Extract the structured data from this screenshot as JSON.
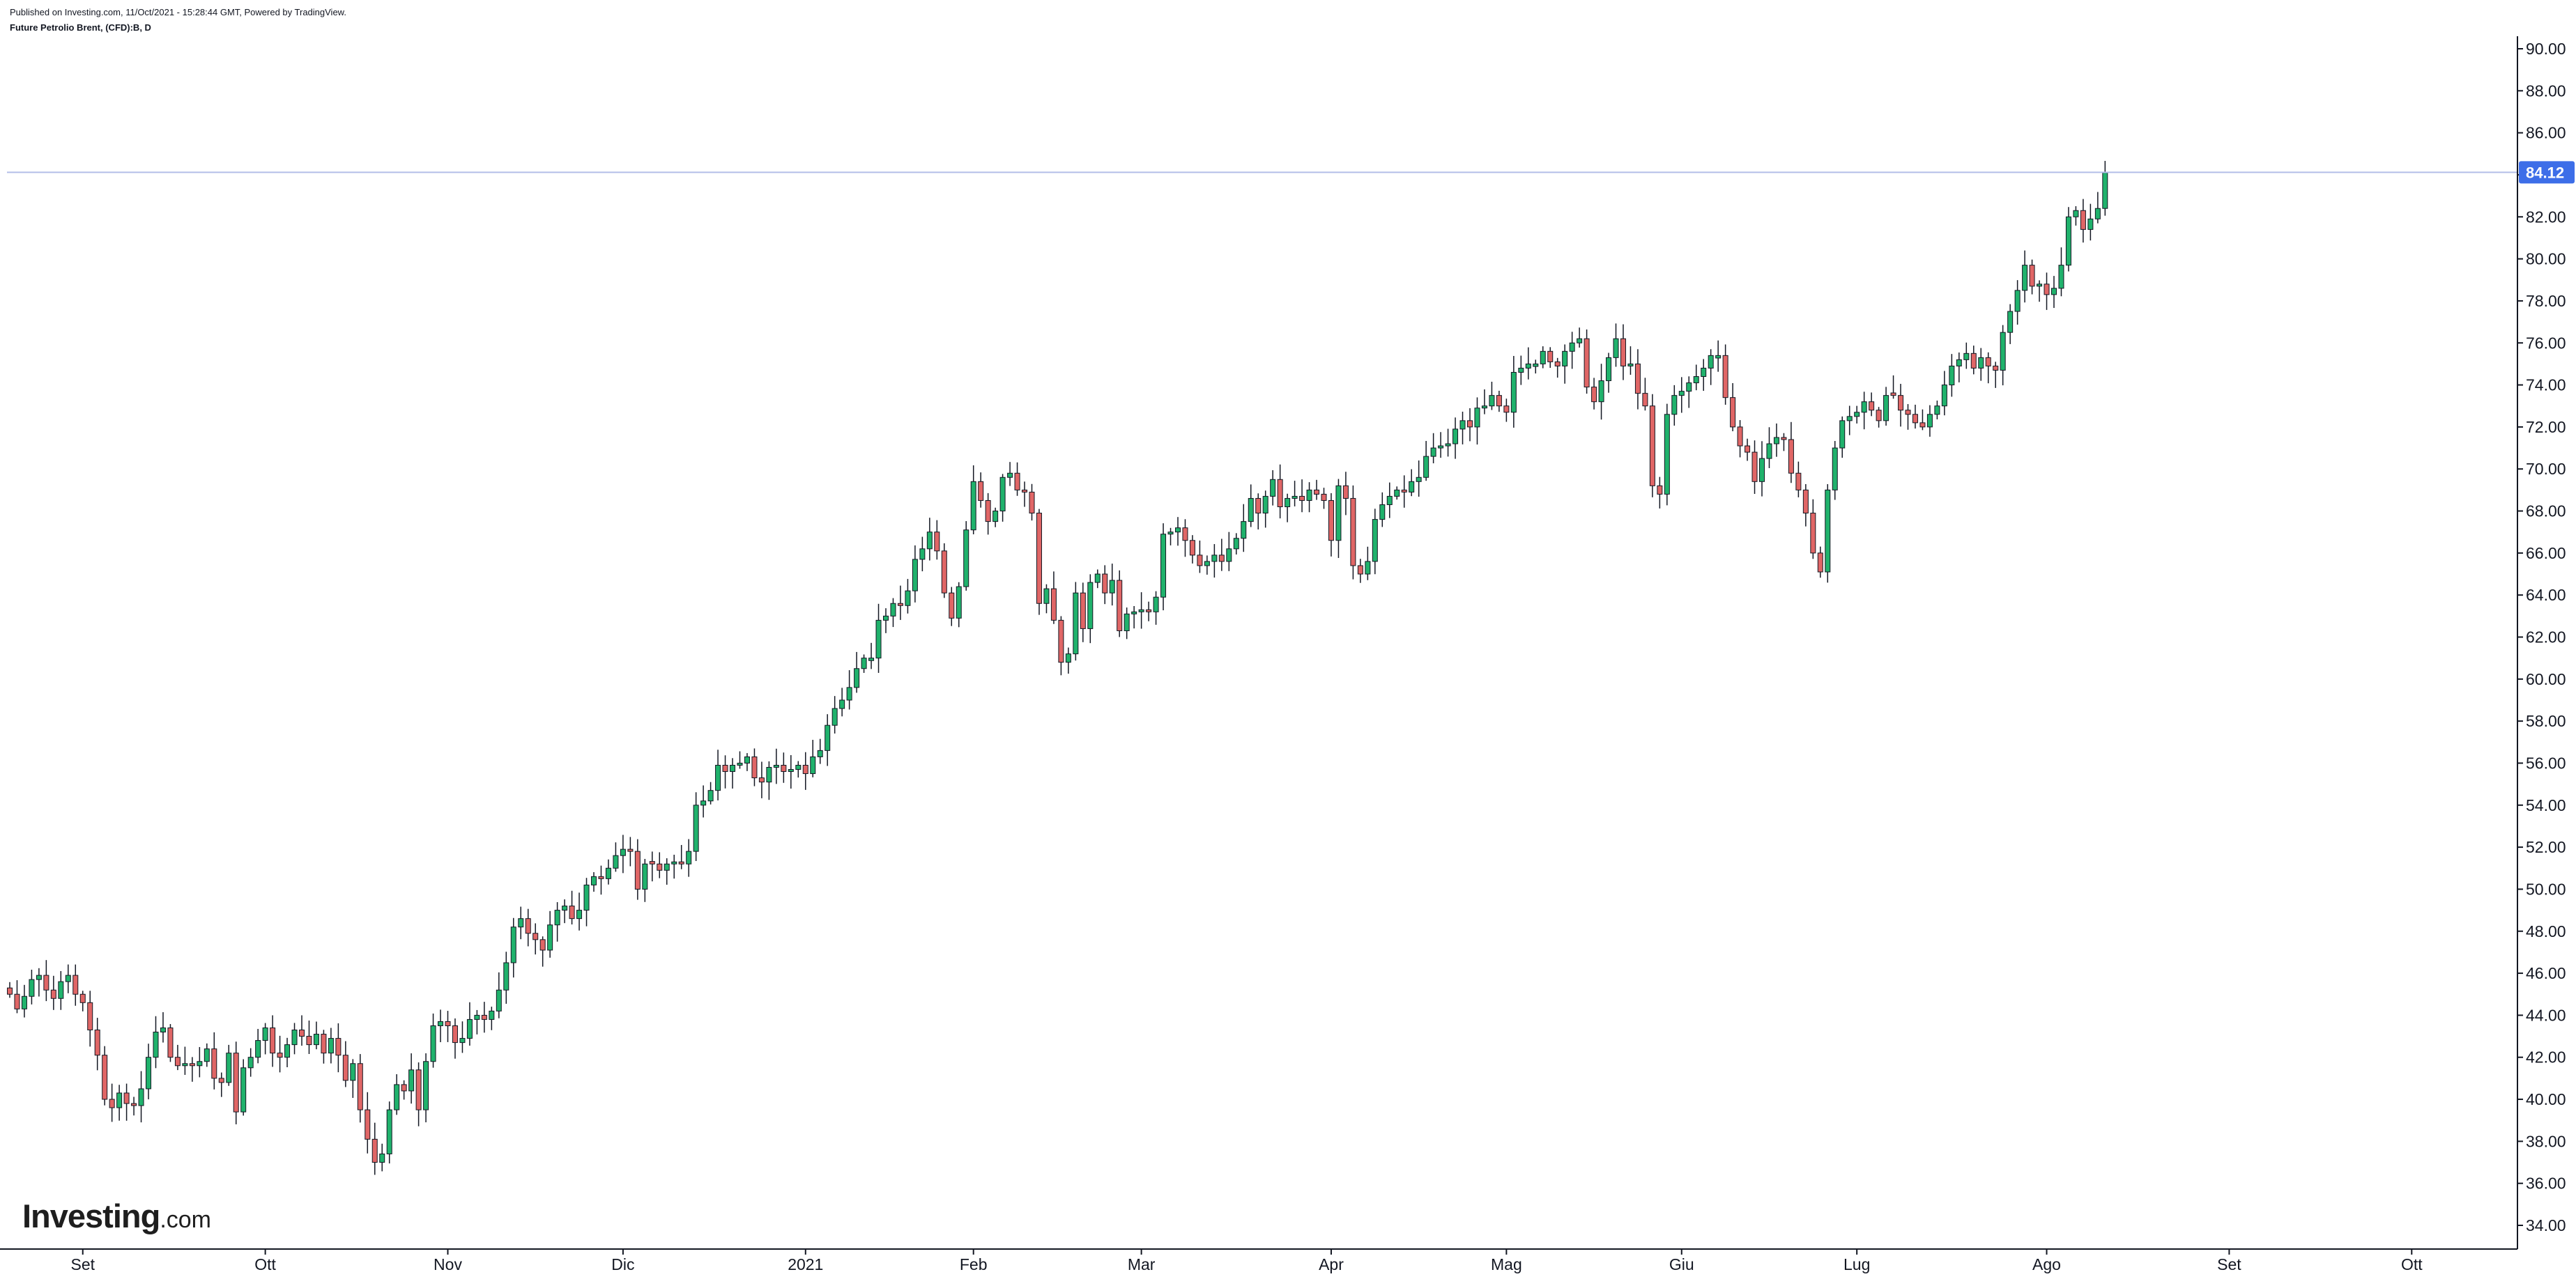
{
  "header": {
    "published": "Published on Investing.com, 11/Oct/2021 - 15:28:44 GMT, Powered by TradingView.",
    "symbol": "Future Petrolio Brent, (CFD):B, D"
  },
  "logo": {
    "bold": "Investing",
    "suffix": ".com"
  },
  "colors": {
    "up": "#26a269",
    "up_fill": "#20b26c",
    "down": "#e05a5a",
    "down_fill": "#e06666",
    "wick": "#131722",
    "last_price_line": "#b3bde8",
    "last_price_badge": "#3d6ee8",
    "axis": "#131722"
  },
  "chart_data": {
    "type": "candlestick",
    "title": "Future Petrolio Brent, (CFD):B, D",
    "ylim": [
      33,
      91
    ],
    "y_ticks": [
      "34.00",
      "36.00",
      "38.00",
      "40.00",
      "42.00",
      "44.00",
      "46.00",
      "48.00",
      "50.00",
      "52.00",
      "54.00",
      "56.00",
      "58.00",
      "60.00",
      "62.00",
      "64.00",
      "66.00",
      "68.00",
      "70.00",
      "72.00",
      "74.00",
      "76.00",
      "78.00",
      "80.00",
      "82.00",
      "84.00",
      "86.00",
      "88.00",
      "90.00"
    ],
    "x_ticks": [
      {
        "label": "Set",
        "index": 10
      },
      {
        "label": "Ott",
        "index": 35
      },
      {
        "label": "Nov",
        "index": 60
      },
      {
        "label": "Dic",
        "index": 84
      },
      {
        "label": "2021",
        "index": 109
      },
      {
        "label": "Feb",
        "index": 132
      },
      {
        "label": "Mar",
        "index": 155
      },
      {
        "label": "Apr",
        "index": 181
      },
      {
        "label": "Mag",
        "index": 205
      },
      {
        "label": "Giu",
        "index": 229
      },
      {
        "label": "Lug",
        "index": 253
      },
      {
        "label": "Ago",
        "index": 279
      },
      {
        "label": "Set",
        "index": 304
      },
      {
        "label": "Ott",
        "index": 329
      }
    ],
    "last_price": "84.12",
    "last_price_value": 84.12,
    "closes": [
      45.0,
      44.3,
      44.9,
      45.7,
      45.9,
      45.2,
      44.8,
      45.6,
      45.9,
      45.0,
      44.6,
      43.3,
      42.1,
      40.0,
      39.6,
      40.3,
      39.8,
      39.7,
      40.5,
      42.0,
      43.2,
      43.4,
      42.0,
      41.6,
      41.7,
      41.6,
      41.8,
      42.4,
      41.0,
      40.8,
      42.2,
      39.4,
      41.5,
      42.0,
      42.8,
      43.4,
      42.2,
      42.0,
      42.6,
      43.3,
      43.0,
      42.6,
      43.1,
      42.2,
      42.9,
      42.1,
      40.9,
      41.7,
      39.5,
      38.1,
      37.0,
      37.4,
      39.5,
      40.7,
      40.4,
      41.4,
      39.5,
      41.8,
      43.5,
      43.7,
      43.5,
      42.7,
      42.9,
      43.8,
      44.0,
      43.8,
      44.2,
      45.2,
      46.5,
      48.2,
      48.6,
      47.9,
      47.6,
      47.1,
      48.3,
      49.0,
      49.2,
      48.6,
      49.0,
      50.2,
      50.6,
      50.5,
      51.0,
      51.6,
      51.9,
      51.8,
      50.0,
      51.2,
      51.2,
      50.9,
      51.2,
      51.3,
      51.2,
      51.8,
      54.0,
      54.2,
      54.7,
      55.9,
      55.6,
      55.9,
      56.0,
      56.3,
      55.3,
      55.1,
      55.8,
      55.9,
      55.6,
      55.7,
      55.9,
      55.5,
      56.3,
      56.6,
      57.8,
      58.6,
      59.0,
      59.6,
      60.5,
      61.0,
      61.0,
      62.8,
      63.0,
      63.6,
      63.5,
      64.2,
      65.7,
      66.2,
      67.0,
      66.1,
      64.1,
      62.9,
      64.4,
      67.1,
      69.4,
      68.5,
      67.5,
      68.0,
      69.6,
      69.8,
      69.0,
      68.9,
      67.9,
      63.6,
      64.3,
      62.8,
      60.8,
      61.2,
      64.1,
      62.4,
      64.6,
      65.0,
      64.1,
      64.7,
      62.3,
      63.1,
      63.2,
      63.3,
      63.2,
      63.9,
      66.9,
      67.0,
      67.2,
      66.6,
      65.9,
      65.4,
      65.6,
      65.9,
      65.6,
      66.2,
      66.7,
      67.5,
      68.6,
      67.9,
      68.7,
      69.5,
      68.2,
      68.6,
      68.7,
      68.5,
      69.0,
      68.8,
      68.5,
      66.6,
      69.2,
      68.6,
      65.4,
      65.0,
      65.6,
      67.6,
      68.3,
      68.7,
      69.0,
      68.9,
      69.4,
      69.6,
      70.6,
      71.0,
      71.1,
      71.2,
      71.9,
      72.3,
      72.0,
      72.9,
      73.0,
      73.5,
      73.0,
      72.7,
      74.6,
      74.8,
      75.0,
      75.0,
      75.6,
      75.1,
      74.9,
      75.6,
      76.0,
      76.2,
      73.9,
      73.2,
      74.2,
      75.3,
      76.2,
      74.9,
      75.0,
      73.6,
      73.0,
      69.2,
      68.8,
      72.6,
      73.5,
      73.7,
      74.1,
      74.4,
      74.8,
      75.4,
      75.4,
      73.4,
      72.0,
      71.1,
      70.8,
      69.4,
      70.5,
      71.2,
      71.5,
      71.4,
      69.8,
      69.0,
      67.9,
      66.0,
      65.1,
      69.0,
      71.0,
      72.3,
      72.5,
      72.7,
      73.2,
      72.8,
      72.3,
      73.5,
      73.5,
      72.8,
      72.6,
      72.2,
      72.0,
      72.6,
      73.0,
      74.0,
      74.9,
      75.2,
      75.5,
      74.8,
      75.3,
      74.9,
      74.7,
      76.5,
      77.5,
      78.5,
      79.7,
      78.7,
      78.8,
      78.3,
      78.6,
      79.7,
      82.0,
      82.3,
      81.4,
      81.9,
      82.4,
      84.1
    ]
  }
}
